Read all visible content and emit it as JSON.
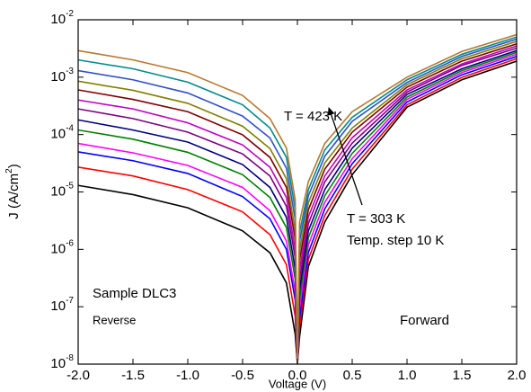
{
  "chart_data": {
    "type": "line",
    "y_scale": "log",
    "xlabel": "Voltage (V)",
    "ylabel": {
      "text": "J (A/cm",
      "sup": "2",
      "tail": ")"
    },
    "annotations": [
      "T = 423 K",
      "T = 303 K",
      "Temp. step 10 K",
      "Sample DLC3",
      "Reverse",
      "Forward"
    ],
    "xlim": [
      -2,
      2
    ],
    "xticks": [
      {
        "value": -2,
        "label": "-2.0"
      },
      -1.5,
      {
        "value": -1,
        "label": "-1.0"
      },
      -0.5,
      {
        "value": 0,
        "label": "0.0"
      },
      0.5,
      {
        "value": 1,
        "label": "1.0"
      },
      1.5,
      {
        "value": 2,
        "label": "2.0"
      }
    ],
    "ylim": [
      1e-08,
      0.01
    ],
    "yticks": [
      {
        "value": 1e-08,
        "label": "10",
        "exponent": "-8"
      },
      {
        "value": 1e-07,
        "label": "10",
        "exponent": "-7"
      },
      {
        "value": 1e-06,
        "label": "10",
        "exponent": "-6"
      },
      {
        "value": 1e-05,
        "label": "10",
        "exponent": "-5"
      },
      {
        "value": 0.0001,
        "label": "10",
        "exponent": "-4"
      },
      {
        "value": 0.001,
        "label": "10",
        "exponent": "-3"
      },
      {
        "value": 0.01,
        "label": "10",
        "exponent": "-2"
      }
    ],
    "x": [
      -2,
      -1.5,
      -1,
      -0.5,
      -0.25,
      -0.1,
      -0.02,
      0,
      0.02,
      0.1,
      0.25,
      0.5,
      1,
      1.5,
      2
    ],
    "series": [
      {
        "color": "#000000",
        "values": [
          1.3e-05,
          9e-06,
          5.3e-06,
          2.1e-06,
          8.7e-07,
          2.6e-07,
          3.3e-08,
          1e-08,
          3e-08,
          5e-07,
          3e-06,
          2e-05,
          0.0003,
          0.0009,
          0.0019
        ]
      },
      {
        "color": "#ff0000",
        "values": [
          2.7e-05,
          1.9e-05,
          1.1e-05,
          4.5e-06,
          1.8e-06,
          5.4e-07,
          6.8e-08,
          1e-08,
          4.4e-08,
          6.7e-07,
          3.9e-06,
          2.5e-05,
          0.00033,
          0.00099,
          0.0021
        ]
      },
      {
        "color": "#0000ff",
        "values": [
          5e-05,
          3.5e-05,
          2.1e-05,
          8.3e-06,
          3.4e-06,
          1e-06,
          1.3e-07,
          1e-08,
          6.5e-08,
          8.8e-07,
          5.1e-06,
          3.1e-05,
          0.00037,
          0.0011,
          0.0023
        ]
      },
      {
        "color": "#ff00ff",
        "values": [
          7e-05,
          4.8e-05,
          2.9e-05,
          1.2e-05,
          4.7e-06,
          1.4e-06,
          1.8e-07,
          1e-08,
          9.5e-08,
          1.2e-06,
          6.6e-06,
          3.8e-05,
          0.00041,
          0.0012,
          0.0025
        ]
      },
      {
        "color": "#008000",
        "values": [
          0.00012,
          8.3e-05,
          4.9e-05,
          2e-05,
          8e-06,
          2.4e-06,
          3e-07,
          1e-08,
          1.4e-07,
          1.6e-06,
          8.6e-06,
          4.7e-05,
          0.00045,
          0.0013,
          0.0027
        ]
      },
      {
        "color": "#000080",
        "values": [
          0.00018,
          0.00012,
          7.4e-05,
          3e-05,
          1.2e-05,
          3.6e-06,
          4.5e-07,
          1e-08,
          2e-07,
          2.1e-06,
          1.1e-05,
          5.8e-05,
          0.0005,
          0.0014,
          0.0029
        ]
      },
      {
        "color": "#800080",
        "values": [
          0.00028,
          0.00019,
          0.00011,
          4.6e-05,
          1.9e-05,
          5.6e-06,
          7e-07,
          1e-08,
          3e-07,
          2.8e-06,
          1.5e-05,
          7.1e-05,
          0.00055,
          0.0016,
          0.0032
        ]
      },
      {
        "color": "#c000c0",
        "values": [
          0.0004,
          0.00028,
          0.00016,
          6.6e-05,
          2.7e-05,
          8e-06,
          1e-06,
          1e-08,
          4.4e-07,
          3.7e-06,
          1.9e-05,
          8.8e-05,
          0.0006,
          0.0017,
          0.0035
        ]
      },
      {
        "color": "#800000",
        "values": [
          0.0006,
          0.00041,
          0.00025,
          9.9e-05,
          4e-05,
          1.2e-05,
          1.5e-06,
          1e-08,
          6.5e-07,
          4.9e-06,
          2.5e-05,
          0.00011,
          0.00067,
          0.0019,
          0.0038
        ]
      },
      {
        "color": "#808000",
        "values": [
          0.00085,
          0.00059,
          0.00035,
          0.00014,
          5.7e-05,
          1.7e-05,
          2.1e-06,
          1e-08,
          9.5e-07,
          6.5e-06,
          3.2e-05,
          0.00013,
          0.00074,
          0.0021,
          0.0042
        ]
      },
      {
        "color": "#3050c8",
        "values": [
          0.0013,
          0.0009,
          0.00053,
          0.00021,
          8.7e-05,
          2.6e-05,
          3.3e-06,
          1e-08,
          1.4e-06,
          8.6e-06,
          4.2e-05,
          0.00017,
          0.00081,
          0.0023,
          0.0046
        ]
      },
      {
        "color": "#008b8b",
        "values": [
          0.002,
          0.0014,
          0.00082,
          0.00033,
          0.00013,
          4e-05,
          5e-06,
          1e-08,
          2e-06,
          1.1e-05,
          5.4e-05,
          0.0002,
          0.0009,
          0.0025,
          0.005
        ]
      },
      {
        "color": "#b8792c",
        "values": [
          0.0029,
          0.002,
          0.0012,
          0.00048,
          0.00019,
          5.8e-05,
          7.3e-06,
          1e-08,
          3e-06,
          1.5e-05,
          7e-05,
          0.00025,
          0.001,
          0.0028,
          0.0055
        ]
      }
    ]
  }
}
